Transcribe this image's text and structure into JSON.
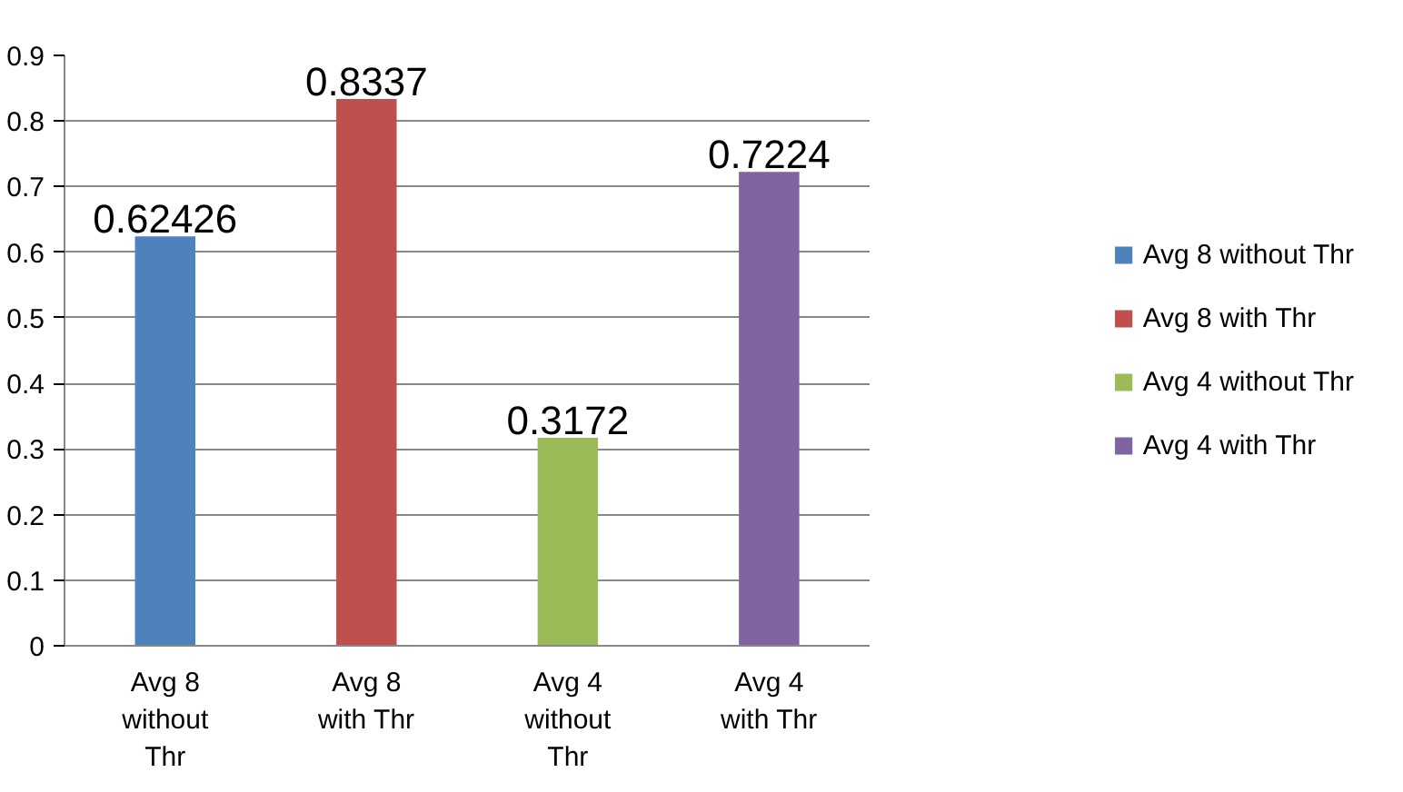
{
  "chart_data": {
    "type": "bar",
    "categories": [
      "Avg 8 without Thr",
      "Avg 8 with Thr",
      "Avg 4 without Thr",
      "Avg 4 with Thr"
    ],
    "series": [
      {
        "name": "Avg 8 without Thr",
        "color": "#4f81bd",
        "values": [
          0.62426,
          null,
          null,
          null
        ]
      },
      {
        "name": "Avg 8 with Thr",
        "color": "#c0504d",
        "values": [
          null,
          0.8337,
          null,
          null
        ]
      },
      {
        "name": "Avg 4 without Thr",
        "color": "#9bbb59",
        "values": [
          null,
          null,
          0.3172,
          null
        ]
      },
      {
        "name": "Avg 4 with Thr",
        "color": "#8064a2",
        "values": [
          null,
          null,
          null,
          0.7224
        ]
      }
    ],
    "ylim": [
      0,
      0.9
    ],
    "yticks": [
      0,
      0.1,
      0.2,
      0.3,
      0.4,
      0.5,
      0.6,
      0.7,
      0.8,
      0.9
    ],
    "grid": "y",
    "legend": "right",
    "data_labels": true
  }
}
